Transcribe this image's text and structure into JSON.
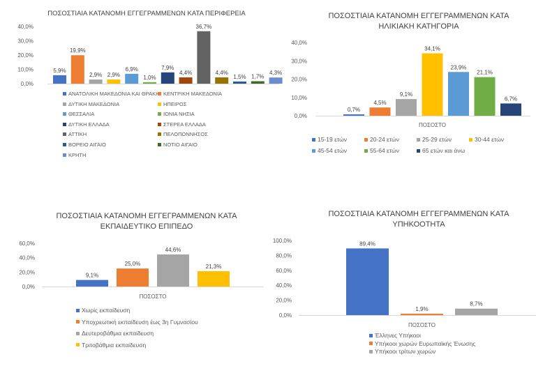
{
  "chart_data": [
    {
      "id": "region",
      "type": "bar",
      "title": "ΠΟΣΟΣΤΙΑΙΑ ΚΑΤΑΝΟΜΗ ΕΓΓΕΓΡΑΜΜΕΝΩΝ ΚΑΤΑ ΠΕΡΙΦΕΡΕΙΑ",
      "xlabel": "",
      "ylabel": "",
      "ylim": [
        0,
        40
      ],
      "yticks": [
        "0,0%",
        "10,0%",
        "20,0%",
        "30,0%",
        "40,0%"
      ],
      "grid": false,
      "legend_position": "bottom",
      "series": [
        {
          "name": "ΑΝΑΤΟΛΙΚΗ ΜΑΚΕΔΟΝΙΑ ΚΑΙ ΘΡΑΚΗ",
          "value": 5.9,
          "label": "5,9%",
          "color": "#4472C4"
        },
        {
          "name": "ΚΕΝΤΡΙΚΗ ΜΑΚΕΔΟΝΙΑ",
          "value": 19.9,
          "label": "19,9%",
          "color": "#ED7D31"
        },
        {
          "name": "ΔΥΤΙΚΗ ΜΑΚΕΔΟΝΙΑ",
          "value": 2.9,
          "label": "2,9%",
          "color": "#A5A5A5"
        },
        {
          "name": "ΗΠΕΙΡΟΣ",
          "value": 2.9,
          "label": "2,9%",
          "color": "#FFC000"
        },
        {
          "name": "ΘΕΣΣΑΛΙΑ",
          "value": 6.9,
          "label": "6,9%",
          "color": "#5B9BD5"
        },
        {
          "name": "ΙΟΝΙΑ ΝΗΣΙΑ",
          "value": 1.0,
          "label": "1,0%",
          "color": "#70AD47"
        },
        {
          "name": "ΔΥΤΙΚΗ ΕΛΛΑΔΑ",
          "value": 7.9,
          "label": "7,9%",
          "color": "#264478"
        },
        {
          "name": "ΣΤΕΡΕΑ ΕΛΛΑΔΑ",
          "value": 4.4,
          "label": "4,4%",
          "color": "#9E480E"
        },
        {
          "name": "ΑΤΤΙΚΗ",
          "value": 36.7,
          "label": "36,7%",
          "color": "#636363"
        },
        {
          "name": "ΠΕΛΟΠΟΝΝΗΣΟΣ",
          "value": 4.4,
          "label": "4,4%",
          "color": "#997300"
        },
        {
          "name": "ΒΟΡΕΙΟ ΑΙΓΑΙΟ",
          "value": 1.5,
          "label": "1,5%",
          "color": "#255E91"
        },
        {
          "name": "ΝΟΤΙΟ ΑΙΓΑΙΟ",
          "value": 1.7,
          "label": "1,7%",
          "color": "#43682B"
        },
        {
          "name": "ΚΡΗΤΗ",
          "value": 4.3,
          "label": "4,3%",
          "color": "#698ED0"
        }
      ]
    },
    {
      "id": "age",
      "type": "bar",
      "title": "ΠΟΣΟΣΤΙΑΙΑ ΚΑΤΑΝΟΜΗ ΕΓΓΕΓΡΑΜΜΕΝΩΝ  ΚΑΤΑ\nΗΛΙΚΙΑΚΗ ΚΑΤΗΓΟΡΙΑ",
      "xlabel": "ΠΟΣΟΣΤΟ",
      "ylabel": "",
      "ylim": [
        0,
        40
      ],
      "yticks": [
        "0,0%",
        "10,0%",
        "20,0%",
        "30,0%",
        "40,0%"
      ],
      "grid": false,
      "legend_position": "bottom",
      "series": [
        {
          "name": "15-19 ετών",
          "value": 0.7,
          "label": "0,7%",
          "color": "#4472C4"
        },
        {
          "name": "20-24 ετών",
          "value": 4.5,
          "label": "4,5%",
          "color": "#ED7D31"
        },
        {
          "name": "25-29 ετών",
          "value": 9.1,
          "label": "9,1%",
          "color": "#A5A5A5"
        },
        {
          "name": "30-44 ετών",
          "value": 34.1,
          "label": "34,1%",
          "color": "#FFC000"
        },
        {
          "name": "45-54 ετών",
          "value": 23.9,
          "label": "23,9%",
          "color": "#5B9BD5"
        },
        {
          "name": "55-64 ετών",
          "value": 21.1,
          "label": "21,1%",
          "color": "#70AD47"
        },
        {
          "name": "65 ετών και άνω",
          "value": 6.7,
          "label": "6,7%",
          "color": "#264478"
        }
      ]
    },
    {
      "id": "education",
      "type": "bar",
      "title": "ΠΟΣΟΣΤΙΑΙΑ ΚΑΤΑΝΟΜΗ ΕΓΓΕΓΡΑΜΜΕΝΩΝ ΚΑΤΑ\nΕΚΠΑΙΔΕΥΤΙΚΟ ΕΠΙΠΕΔΟ",
      "xlabel": "ΠΟΣΟΣΤΟ",
      "ylabel": "",
      "ylim": [
        0,
        60
      ],
      "yticks": [
        "0,0%",
        "20,0%",
        "40,0%",
        "60,0%"
      ],
      "grid": false,
      "legend_position": "bottom",
      "series": [
        {
          "name": "Χωρίς εκπαίδευση",
          "value": 9.1,
          "label": "9,1%",
          "color": "#4472C4"
        },
        {
          "name": "Υποχρεωτική εκπαίδευση έως 3η Γυμνασίου",
          "value": 25.0,
          "label": "25,0%",
          "color": "#ED7D31"
        },
        {
          "name": "Δευτεροβάθμια εκπαίδευση",
          "value": 44.6,
          "label": "44,6%",
          "color": "#A5A5A5"
        },
        {
          "name": "Τριτοβάθμια εκπαίδευση",
          "value": 21.3,
          "label": "21,3%",
          "color": "#FFC000"
        }
      ]
    },
    {
      "id": "citizenship",
      "type": "bar",
      "title": "ΠΟΣΟΣΤΙΑΙΑ ΚΑΤΑΝΟΜΗ  ΕΓΓΕΓΡΑΜΜΕΝΩΝ ΚΑΤΑ\nΥΠΗΚΟΟΤΗΤΑ",
      "xlabel": "ΠΟΣΟΣΤΟ",
      "ylabel": "",
      "ylim": [
        0,
        100
      ],
      "yticks": [
        "0,0%",
        "20,0%",
        "40,0%",
        "60,0%",
        "80,0%",
        "100,0%"
      ],
      "grid": false,
      "legend_position": "bottom",
      "series": [
        {
          "name": "Έλληνες Υπήκοοι",
          "value": 89.4,
          "label": "89,4%",
          "color": "#4472C4"
        },
        {
          "name": "Υπήκοοι χωρών Ευρωπαϊκής Ένωσης",
          "value": 1.9,
          "label": "1,9%",
          "color": "#ED7D31"
        },
        {
          "name": "Υπήκοοι τρίτων χωρών",
          "value": 8.7,
          "label": "8,7%",
          "color": "#A5A5A5"
        }
      ]
    }
  ]
}
